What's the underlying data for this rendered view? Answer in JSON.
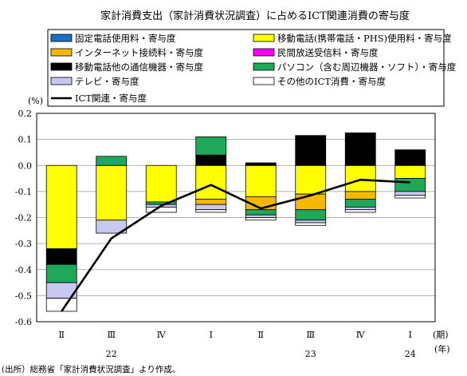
{
  "chart_data": {
    "type": "bar",
    "title": "家計消費支出（家計消費状況調査）に占めるICT関連消費の寄与度",
    "ylabel": "(%)",
    "xlabel_unit": "(期)",
    "year_unit": "(年)",
    "source_note": "(出所）総務省「家計消費状況調査」より作成。",
    "ylim": [
      -0.6,
      0.2
    ],
    "y_ticks": [
      0.2,
      0.1,
      0.0,
      -0.1,
      -0.2,
      -0.3,
      -0.4,
      -0.5,
      -0.6
    ],
    "y_tick_labels": [
      "0.2",
      "0.1",
      "0.0",
      "-0.1",
      "-0.2",
      "-0.3",
      "-0.4",
      "-0.5",
      "-0.6"
    ],
    "categories": [
      "Ⅱ",
      "Ⅲ",
      "Ⅳ",
      "Ⅰ",
      "Ⅱ",
      "Ⅲ",
      "Ⅳ",
      "Ⅰ"
    ],
    "years": [
      {
        "label": "22",
        "category_index": 1
      },
      {
        "label": "23",
        "category_index": 5
      },
      {
        "label": "24",
        "category_index": 7
      }
    ],
    "grid": true,
    "legend_position": "top",
    "series": [
      {
        "name": "固定電話使用料・寄与度",
        "color": "#1f6fc0",
        "values": [
          0.0,
          0.0,
          0.0,
          0.0,
          0.0,
          0.0,
          0.0,
          0.0
        ]
      },
      {
        "name": "移動電話(携帯電話・PHS)使用料・寄与度",
        "color": "#ffff00",
        "values": [
          -0.32,
          -0.21,
          -0.14,
          -0.13,
          -0.12,
          -0.11,
          -0.1,
          -0.05
        ]
      },
      {
        "name": "インターネット接続料・寄与度",
        "color": "#f5b800",
        "values": [
          0.0,
          0.0,
          0.0,
          -0.02,
          -0.05,
          -0.06,
          -0.03,
          0.0
        ]
      },
      {
        "name": "民間放送受信料・寄与度",
        "color": "#ff00ff",
        "values": [
          0.0,
          0.0,
          0.0,
          0.0,
          0.0,
          0.0,
          0.0,
          0.0
        ]
      },
      {
        "name": "移動電話他の通信機器・寄与度",
        "color": "#000000",
        "values": [
          -0.06,
          0.0,
          0.0,
          0.04,
          0.01,
          0.115,
          0.125,
          0.06
        ]
      },
      {
        "name": "パソコン（含む周辺機器・ソフト）・寄与度",
        "color": "#1fa85a",
        "values": [
          -0.07,
          0.035,
          -0.01,
          0.07,
          -0.02,
          -0.04,
          -0.03,
          -0.05
        ]
      },
      {
        "name": "テレビ・寄与度",
        "color": "#c8c8f0",
        "values": [
          -0.06,
          -0.05,
          -0.01,
          -0.02,
          -0.01,
          -0.01,
          -0.01,
          -0.015
        ]
      },
      {
        "name": "その他のICT消費・寄与度",
        "color": "#ffffff",
        "values": [
          -0.05,
          0.0,
          -0.02,
          -0.01,
          -0.01,
          -0.01,
          -0.01,
          -0.01
        ]
      }
    ],
    "line_series": {
      "name": "ICT関連・寄与度",
      "color": "#000000",
      "values": [
        -0.56,
        -0.28,
        -0.155,
        -0.075,
        -0.165,
        -0.115,
        -0.055,
        -0.065
      ]
    }
  }
}
